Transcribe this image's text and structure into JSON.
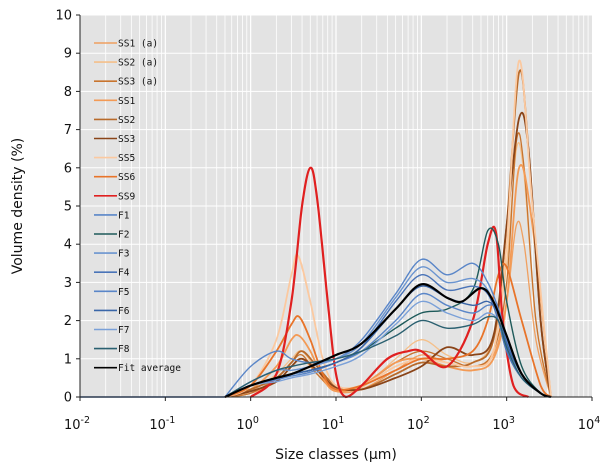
{
  "chart_data": {
    "type": "line",
    "xlabel": "Size classes (µm)",
    "ylabel": "Volume density (%)",
    "xscale": "log",
    "xlim": [
      0.01,
      10000
    ],
    "ylim": [
      0,
      10
    ],
    "x_tick_labels": [
      {
        "base": "10",
        "exp": "-2",
        "value": 0.01
      },
      {
        "base": "10",
        "exp": "-1",
        "value": 0.1
      },
      {
        "base": "10",
        "exp": "0",
        "value": 1
      },
      {
        "base": "10",
        "exp": "1",
        "value": 10
      },
      {
        "base": "10",
        "exp": "2",
        "value": 100
      },
      {
        "base": "10",
        "exp": "3",
        "value": 1000
      },
      {
        "base": "10",
        "exp": "4",
        "value": 10000
      }
    ],
    "y_ticks": [
      "0",
      "1",
      "2",
      "3",
      "4",
      "5",
      "6",
      "7",
      "8",
      "9",
      "10"
    ],
    "grid": true,
    "legend_position": "top-left",
    "series": [
      {
        "name": "SS1 (a)",
        "color": "#f0a060",
        "width": 1.3,
        "x": [
          0.5,
          1,
          2,
          3,
          4,
          6,
          10,
          20,
          50,
          100,
          200,
          400,
          700,
          1000,
          1300,
          1600,
          2200,
          3300
        ],
        "y": [
          0,
          0.1,
          0.4,
          0.8,
          1.0,
          0.6,
          0.15,
          0.2,
          0.7,
          1.1,
          0.9,
          0.8,
          1.1,
          2.5,
          4.5,
          4.0,
          1.5,
          0
        ]
      },
      {
        "name": "SS2 (a)",
        "color": "#f5c08a",
        "width": 1.3,
        "x": [
          0.5,
          1,
          2,
          3,
          4,
          6,
          10,
          20,
          50,
          100,
          200,
          400,
          700,
          1000,
          1300,
          1600,
          2200,
          3300
        ],
        "y": [
          0,
          0.15,
          0.6,
          1.0,
          1.2,
          0.7,
          0.2,
          0.25,
          1.0,
          1.5,
          1.1,
          0.9,
          1.5,
          3.5,
          6.5,
          5.8,
          2.0,
          0
        ]
      },
      {
        "name": "SS3 (a)",
        "color": "#c8742e",
        "width": 1.3,
        "x": [
          0.5,
          1,
          2,
          3,
          4,
          6,
          10,
          20,
          50,
          100,
          200,
          400,
          700,
          1000,
          1300,
          1600,
          2200,
          3300
        ],
        "y": [
          0,
          0.1,
          0.5,
          0.9,
          1.1,
          0.6,
          0.2,
          0.3,
          0.9,
          1.2,
          1.0,
          0.8,
          1.2,
          3.0,
          6.7,
          6.0,
          2.0,
          0
        ]
      },
      {
        "name": "SS1",
        "color": "#f39a55",
        "width": 1.8,
        "x": [
          0.5,
          1,
          2,
          3,
          3.7,
          5,
          7,
          10,
          20,
          50,
          100,
          200,
          400,
          700,
          1000,
          1400,
          2000,
          3300
        ],
        "y": [
          0,
          0.2,
          0.8,
          1.5,
          1.6,
          1.2,
          0.5,
          0.15,
          0.3,
          0.9,
          1.0,
          0.8,
          0.7,
          1.0,
          2.5,
          6.0,
          4.5,
          0
        ]
      },
      {
        "name": "SS2",
        "color": "#b86a2a",
        "width": 1.8,
        "x": [
          0.5,
          1,
          2,
          3,
          4,
          6,
          10,
          20,
          50,
          100,
          200,
          400,
          700,
          1000,
          1400,
          1800,
          2500,
          3300
        ],
        "y": [
          0,
          0.2,
          0.5,
          0.9,
          1.2,
          0.8,
          0.3,
          0.2,
          0.6,
          0.9,
          0.8,
          0.9,
          1.5,
          4.5,
          8.5,
          6.5,
          2.0,
          0
        ]
      },
      {
        "name": "SS3",
        "color": "#8a4418",
        "width": 1.8,
        "x": [
          0.5,
          1,
          2,
          3,
          4,
          6,
          10,
          20,
          50,
          100,
          200,
          400,
          700,
          1000,
          1400,
          1800,
          2500,
          3300
        ],
        "y": [
          0,
          0.15,
          0.4,
          0.8,
          1.0,
          0.7,
          0.25,
          0.2,
          0.5,
          0.8,
          1.3,
          1.1,
          1.6,
          4.5,
          7.3,
          6.5,
          2.0,
          0
        ]
      },
      {
        "name": "SS5",
        "color": "#fbc9a0",
        "width": 1.8,
        "x": [
          0.5,
          1,
          2,
          3,
          3.6,
          5,
          7,
          10,
          20,
          50,
          100,
          200,
          400,
          700,
          1000,
          1400,
          2000,
          3300
        ],
        "y": [
          0,
          0.3,
          1.5,
          3.2,
          3.7,
          2.5,
          1.0,
          0.3,
          0.3,
          0.8,
          1.0,
          0.9,
          0.8,
          1.2,
          4.0,
          8.8,
          5.0,
          0
        ]
      },
      {
        "name": "SS6",
        "color": "#e8742a",
        "width": 1.8,
        "x": [
          0.5,
          1,
          2,
          3,
          3.7,
          5,
          7,
          10,
          20,
          50,
          100,
          200,
          400,
          600,
          800,
          1000,
          1500,
          2500,
          3300
        ],
        "y": [
          0,
          0.3,
          1.2,
          1.9,
          2.1,
          1.5,
          0.6,
          0.2,
          0.3,
          0.7,
          1.0,
          1.0,
          1.2,
          2.0,
          3.2,
          3.4,
          2.0,
          0.3,
          0
        ]
      },
      {
        "name": "SS9",
        "color": "#e02020",
        "width": 2.2,
        "x": [
          1,
          2,
          3,
          4,
          5,
          6,
          8,
          10,
          13,
          20,
          40,
          70,
          100,
          200,
          400,
          600,
          750,
          900,
          1200,
          1800
        ],
        "y": [
          0,
          0.6,
          2.5,
          5.0,
          6.0,
          5.2,
          2.5,
          0.6,
          0,
          0.3,
          1.0,
          1.2,
          1.2,
          0.8,
          2.0,
          4.0,
          4.3,
          2.0,
          0.3,
          0
        ]
      },
      {
        "name": "F1",
        "color": "#5a86c8",
        "width": 1.4,
        "x": [
          0.5,
          1,
          2,
          3,
          5,
          10,
          20,
          50,
          100,
          200,
          400,
          600,
          800,
          1000,
          1500,
          2500,
          3300
        ],
        "y": [
          0,
          0.8,
          1.2,
          1.0,
          0.9,
          1.0,
          1.5,
          2.7,
          3.6,
          3.2,
          3.5,
          3.0,
          2.3,
          1.5,
          0.6,
          0.1,
          0
        ]
      },
      {
        "name": "F2",
        "color": "#1e5a5a",
        "width": 1.4,
        "x": [
          0.5,
          1,
          2,
          3,
          5,
          10,
          20,
          50,
          100,
          200,
          400,
          600,
          800,
          1000,
          1500,
          2500,
          3300
        ],
        "y": [
          0,
          0.3,
          0.5,
          0.6,
          0.7,
          0.9,
          1.2,
          1.8,
          2.2,
          2.3,
          2.8,
          4.35,
          4.0,
          2.5,
          0.8,
          0.1,
          0
        ]
      },
      {
        "name": "F3",
        "color": "#6a94d0",
        "width": 1.4,
        "x": [
          0.5,
          1,
          2,
          3,
          5,
          10,
          20,
          50,
          100,
          200,
          400,
          600,
          800,
          1000,
          1500,
          2500,
          3300
        ],
        "y": [
          0,
          0.4,
          0.7,
          0.7,
          0.8,
          1.0,
          1.4,
          2.6,
          3.4,
          3.0,
          3.1,
          2.8,
          2.0,
          1.2,
          0.5,
          0.1,
          0
        ]
      },
      {
        "name": "F4",
        "color": "#4a74b8",
        "width": 1.4,
        "x": [
          0.5,
          1,
          2,
          3,
          5,
          10,
          20,
          50,
          100,
          200,
          400,
          600,
          800,
          1000,
          1500,
          2500,
          3300
        ],
        "y": [
          0,
          0.3,
          0.5,
          0.6,
          0.7,
          0.9,
          1.3,
          2.5,
          3.2,
          2.8,
          2.9,
          2.7,
          2.0,
          1.2,
          0.5,
          0.1,
          0
        ]
      },
      {
        "name": "F5",
        "color": "#5a86c8",
        "width": 1.4,
        "x": [
          0.5,
          1,
          2,
          3,
          5,
          10,
          20,
          50,
          100,
          200,
          400,
          600,
          800,
          1000,
          1500,
          2500,
          3300
        ],
        "y": [
          0,
          0.3,
          0.45,
          0.55,
          0.65,
          0.9,
          1.2,
          2.0,
          2.7,
          2.4,
          2.2,
          2.4,
          2.3,
          1.5,
          0.6,
          0.1,
          0
        ]
      },
      {
        "name": "F6",
        "color": "#3a66a8",
        "width": 1.4,
        "x": [
          0.5,
          1,
          2,
          3,
          5,
          10,
          20,
          50,
          100,
          200,
          400,
          600,
          800,
          1000,
          1500,
          2500,
          3300
        ],
        "y": [
          0,
          0.3,
          0.5,
          0.6,
          0.7,
          0.9,
          1.3,
          2.3,
          2.9,
          2.6,
          2.4,
          2.5,
          2.2,
          1.4,
          0.6,
          0.1,
          0
        ]
      },
      {
        "name": "F7",
        "color": "#7aa0d8",
        "width": 1.4,
        "x": [
          0.5,
          1,
          2,
          3,
          5,
          10,
          20,
          50,
          100,
          200,
          400,
          600,
          800,
          1000,
          1500,
          2500,
          3300
        ],
        "y": [
          0,
          0.3,
          0.4,
          0.5,
          0.6,
          0.8,
          1.1,
          1.9,
          2.5,
          2.2,
          2.0,
          2.2,
          2.0,
          1.3,
          0.5,
          0.1,
          0
        ]
      },
      {
        "name": "F8",
        "color": "#2a6070",
        "width": 1.4,
        "x": [
          0.5,
          1,
          2,
          3,
          5,
          10,
          20,
          50,
          100,
          200,
          400,
          600,
          800,
          1000,
          1500,
          2500,
          3300
        ],
        "y": [
          0,
          0.4,
          0.7,
          0.8,
          0.9,
          1.0,
          1.2,
          1.6,
          2.0,
          1.8,
          1.9,
          2.1,
          2.0,
          1.3,
          0.5,
          0.1,
          0
        ]
      },
      {
        "name": "Fit average",
        "color": "#000000",
        "width": 2.2,
        "x": [
          0.5,
          1,
          2,
          3,
          5,
          10,
          20,
          50,
          100,
          200,
          300,
          500,
          700,
          1000,
          1500,
          2500,
          3300
        ],
        "y": [
          0,
          0.3,
          0.5,
          0.6,
          0.8,
          1.1,
          1.4,
          2.3,
          2.95,
          2.6,
          2.5,
          2.85,
          2.5,
          1.6,
          0.6,
          0.1,
          0
        ]
      }
    ],
    "legend_labels": [
      {
        "text": "SS1 (a)",
        "color": "#f0a060"
      },
      {
        "text": "SS2 (a)",
        "color": "#f5c08a"
      },
      {
        "text": "SS3 (a)",
        "color": "#c8742e"
      },
      {
        "text": "SS1",
        "color": "#f39a55"
      },
      {
        "text": "SS2",
        "color": "#b86a2a"
      },
      {
        "text": "SS3",
        "color": "#8a4418"
      },
      {
        "text": "SS5",
        "color": "#fbc9a0"
      },
      {
        "text": "SS6",
        "color": "#e8742a"
      },
      {
        "text": "SS9",
        "color": "#e02020"
      },
      {
        "text": "F1",
        "color": "#5a86c8"
      },
      {
        "text": "F2",
        "color": "#1e5a5a"
      },
      {
        "text": "F3",
        "color": "#6a94d0"
      },
      {
        "text": "F4",
        "color": "#4a74b8"
      },
      {
        "text": "F5",
        "color": "#5a86c8"
      },
      {
        "text": "F6",
        "color": "#3a66a8"
      },
      {
        "text": "F7",
        "color": "#7aa0d8"
      },
      {
        "text": "F8",
        "color": "#2a6070"
      },
      {
        "text": "Fit average",
        "color": "#000000"
      }
    ]
  }
}
